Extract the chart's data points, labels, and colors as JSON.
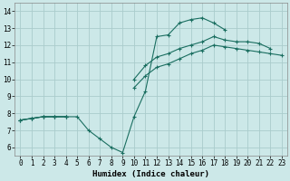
{
  "xlabel": "Humidex (Indice chaleur)",
  "xlim": [
    -0.5,
    23.5
  ],
  "ylim": [
    5.5,
    14.5
  ],
  "xticks": [
    0,
    1,
    2,
    3,
    4,
    5,
    6,
    7,
    8,
    9,
    10,
    11,
    12,
    13,
    14,
    15,
    16,
    17,
    18,
    19,
    20,
    21,
    22,
    23
  ],
  "yticks": [
    6,
    7,
    8,
    9,
    10,
    11,
    12,
    13,
    14
  ],
  "bg_color": "#cce8e8",
  "grid_color": "#aacccc",
  "line_color": "#1a6e60",
  "line1_y": [
    7.6,
    7.7,
    7.8,
    7.8,
    7.8,
    7.8,
    7.0,
    6.5,
    6.0,
    5.7,
    7.8,
    9.3,
    12.5,
    12.6,
    13.3,
    13.5,
    13.6,
    13.3,
    12.9,
    null,
    null,
    null,
    null,
    null
  ],
  "line2_y": [
    7.6,
    7.7,
    7.8,
    7.8,
    7.8,
    null,
    null,
    null,
    null,
    null,
    10.0,
    10.8,
    11.3,
    11.5,
    11.8,
    12.0,
    12.2,
    12.5,
    12.3,
    12.2,
    12.2,
    12.1,
    11.8,
    null
  ],
  "line3_y": [
    7.6,
    7.7,
    7.8,
    7.8,
    7.8,
    null,
    null,
    null,
    null,
    null,
    9.5,
    10.2,
    10.7,
    10.9,
    11.2,
    11.5,
    11.7,
    12.0,
    11.9,
    11.8,
    11.7,
    11.6,
    11.5,
    11.4
  ]
}
